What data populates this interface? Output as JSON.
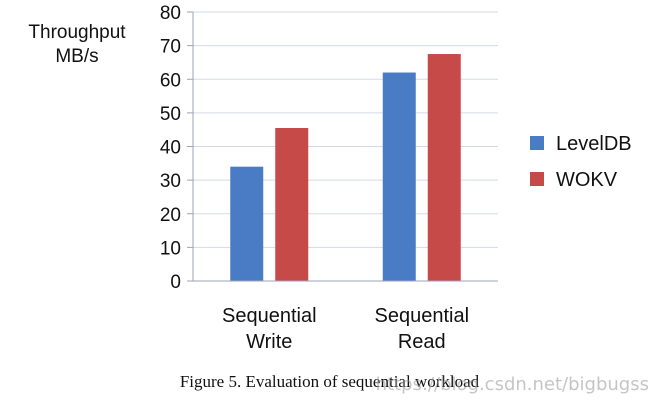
{
  "chart_data": {
    "type": "bar",
    "ylabel_lines": [
      "Throughput",
      "MB/s"
    ],
    "ylim": [
      0,
      80
    ],
    "yticks": [
      0,
      10,
      20,
      30,
      40,
      50,
      60,
      70,
      80
    ],
    "grid": true,
    "legend_position": "right",
    "categories": [
      {
        "lines": [
          "Sequential",
          "Write"
        ]
      },
      {
        "lines": [
          "Sequential",
          "Read"
        ]
      }
    ],
    "series": [
      {
        "name": "LevelDB",
        "color": "#4a7cc6",
        "values": [
          34,
          62
        ]
      },
      {
        "name": "WOKV",
        "color": "#c64a48",
        "values": [
          45.5,
          67.5
        ]
      }
    ]
  },
  "caption": "Figure 5. Evaluation of sequential workload",
  "watermark": "https://blog.csdn.net/bigbugss"
}
